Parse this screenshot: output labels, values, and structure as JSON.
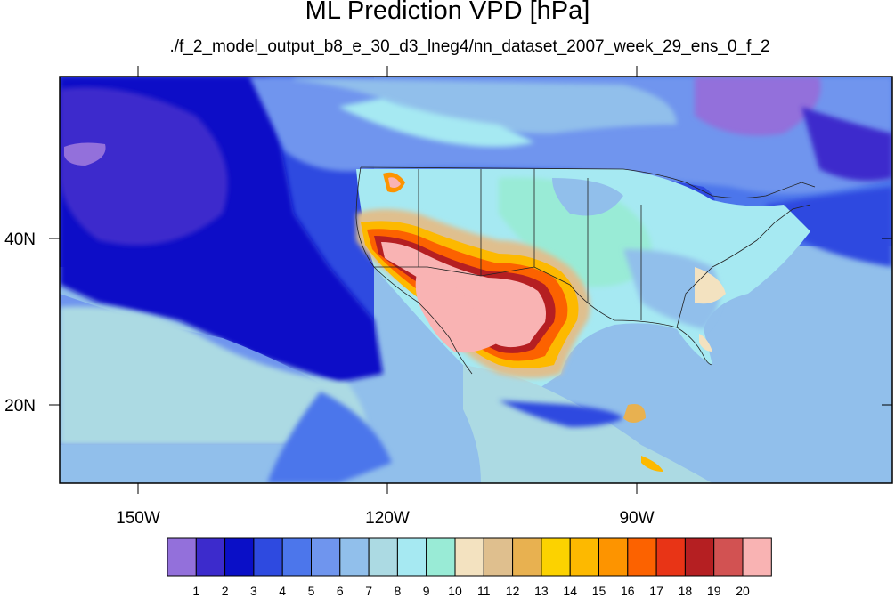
{
  "title": "ML Prediction VPD [hPa]",
  "subtitle": "./f_2_model_output_b8_e_30_d3_lneg4/nn_dataset_2007_week_29_ens_0_f_2",
  "axes": {
    "x_ticks": [
      "150W",
      "120W",
      "90W"
    ],
    "y_ticks": [
      "40N",
      "20N"
    ]
  },
  "colorbar": {
    "colors": [
      "#9370db",
      "#3c2bcc",
      "#0a0fc7",
      "#2e4ae0",
      "#4c76eb",
      "#6f95ee",
      "#91bfeb",
      "#acdae3",
      "#a6e9f2",
      "#99ebd6",
      "#f3e2c0",
      "#dfbf8e",
      "#e8b150",
      "#fcd200",
      "#fdb900",
      "#fd9400",
      "#fc6200",
      "#e83416",
      "#b51f22",
      "#d25252",
      "#f9b3b3"
    ],
    "labels": [
      "1",
      "2",
      "3",
      "4",
      "5",
      "6",
      "7",
      "8",
      "9",
      "10",
      "11",
      "12",
      "13",
      "14",
      "15",
      "16",
      "17",
      "18",
      "19",
      "20"
    ]
  }
}
